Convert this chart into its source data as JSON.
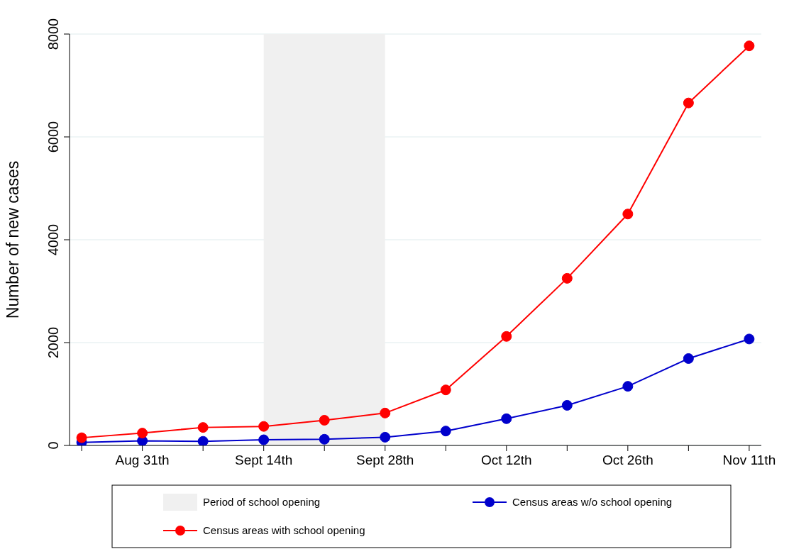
{
  "chart_data": {
    "type": "line",
    "ylabel": "Number of new cases",
    "categories": [
      null,
      "Aug 31th",
      null,
      "Sept 14th",
      null,
      "Sept 28th",
      null,
      "Oct 12th",
      null,
      "Oct 26th",
      null,
      "Nov 11th"
    ],
    "series": [
      {
        "name": "Census areas w/o school opening",
        "color": "#0000cc",
        "values": [
          60,
          90,
          80,
          110,
          120,
          160,
          280,
          520,
          780,
          1150,
          1690,
          2070
        ]
      },
      {
        "name": "Census areas with school opening",
        "color": "#ff0000",
        "values": [
          150,
          240,
          350,
          370,
          490,
          630,
          1080,
          2120,
          3250,
          4500,
          6660,
          7770
        ]
      }
    ],
    "ylim": [
      0,
      8000
    ],
    "yticks": [
      0,
      2000,
      4000,
      6000,
      8000
    ],
    "grid": "y",
    "marker": "circle",
    "line_style": "solid",
    "legend": "bottom",
    "bands": [
      {
        "axis": "x",
        "from": "Sept 14th",
        "to": "Sept 28th",
        "label": "Period of school opening",
        "color": "#f0f0f0"
      }
    ]
  }
}
